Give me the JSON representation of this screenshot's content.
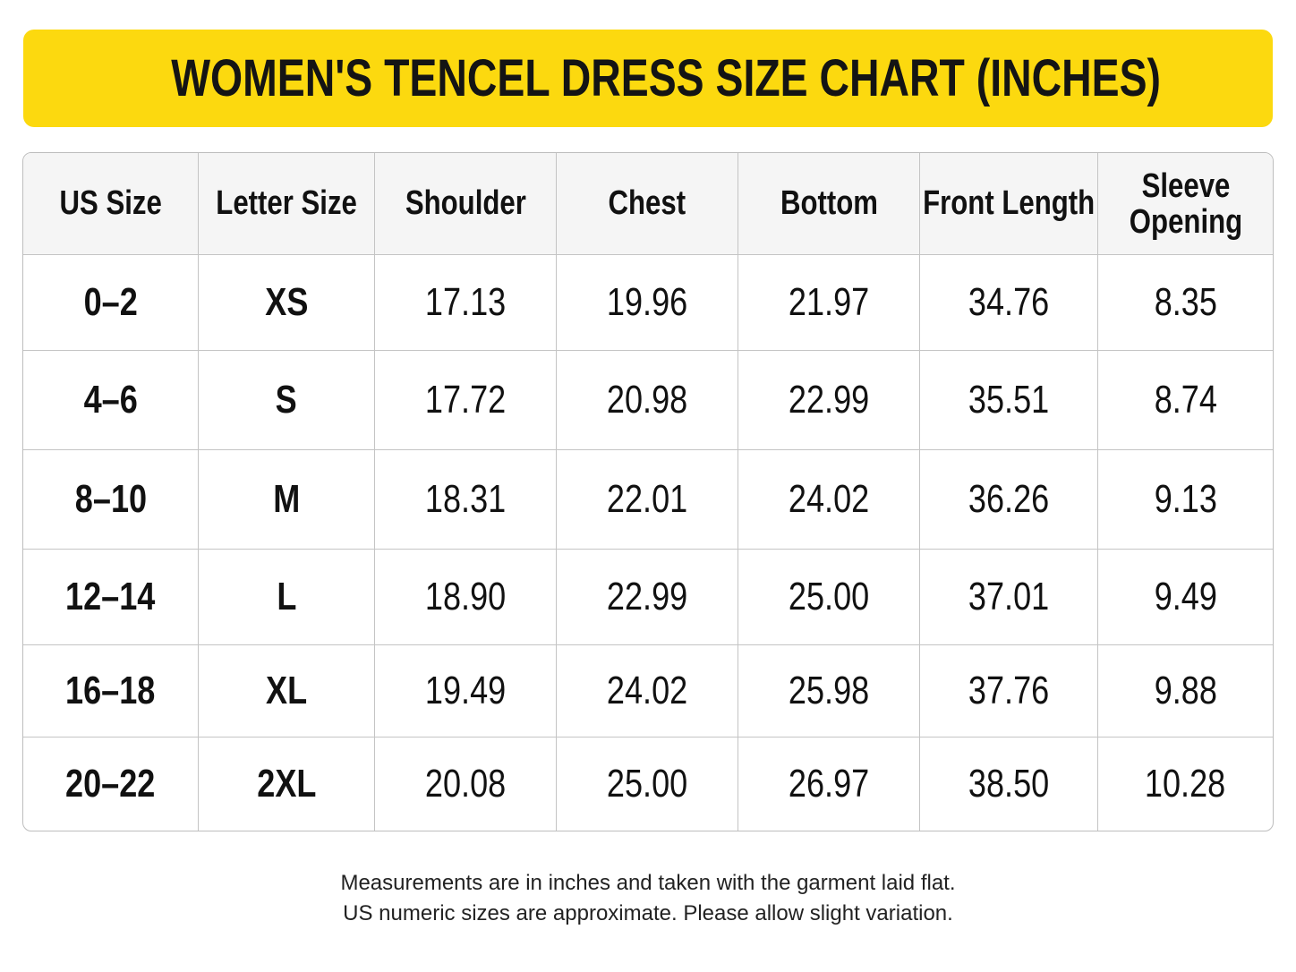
{
  "header": {
    "title": "WOMEN'S TENCEL DRESS SIZE CHART (INCHES)"
  },
  "table": {
    "columns": [
      "US Size",
      "Letter Size",
      "Shoulder",
      "Chest",
      "Bottom",
      "Front Length",
      "Sleeve Opening"
    ],
    "rows": [
      [
        "0–2",
        "XS",
        "17.13",
        "19.96",
        "21.97",
        "34.76",
        "8.35"
      ],
      [
        "4–6",
        "S",
        "17.72",
        "20.98",
        "22.99",
        "35.51",
        "8.74"
      ],
      [
        "8–10",
        "M",
        "18.31",
        "22.01",
        "24.02",
        "36.26",
        "9.13"
      ],
      [
        "12–14",
        "L",
        "18.90",
        "22.99",
        "25.00",
        "37.01",
        "9.49"
      ],
      [
        "16–18",
        "XL",
        "19.49",
        "24.02",
        "25.98",
        "37.76",
        "9.88"
      ],
      [
        "20–22",
        "2XL",
        "20.08",
        "25.00",
        "26.97",
        "38.50",
        "10.28"
      ]
    ]
  },
  "footnote": [
    "Measurements are in inches and taken with the garment laid flat.",
    "US numeric sizes are approximate. Please allow slight variation."
  ]
}
